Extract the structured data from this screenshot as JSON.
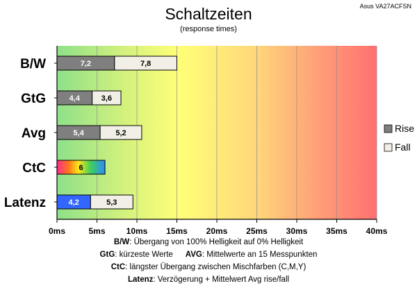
{
  "chart_data": {
    "type": "bar",
    "orientation": "horizontal",
    "stacked": true,
    "title": "Schaltzeiten",
    "subtitle": "(response times)",
    "model": "Asus VA27ACFSN",
    "categories": [
      "B/W",
      "GtG",
      "Avg",
      "CtC",
      "Latenz"
    ],
    "series": [
      {
        "name": "Rise",
        "color": "#7f7f7f",
        "values": [
          7.2,
          4.4,
          5.4,
          6,
          4.2
        ],
        "labels": [
          "7,2",
          "4,4",
          "5,4",
          "6",
          "4,2"
        ]
      },
      {
        "name": "Fall",
        "color": "#f2f0e6",
        "values": [
          7.8,
          3.6,
          5.2,
          null,
          5.3
        ],
        "labels": [
          "7,8",
          "3,6",
          "5,2",
          "",
          "5,3"
        ]
      }
    ],
    "special_colors": {
      "CtC": "rainbow-gradient",
      "Latenz": "#3366ff"
    },
    "xlim": [
      0,
      40
    ],
    "xticks": [
      0,
      5,
      10,
      15,
      20,
      25,
      30,
      35,
      40
    ],
    "xtick_labels": [
      "0ms",
      "5ms",
      "10ms",
      "15ms",
      "20ms",
      "25ms",
      "30ms",
      "35ms",
      "40ms"
    ],
    "grid": true,
    "background": "green-yellow-red gradient",
    "legend_placement": "right"
  },
  "notes": [
    {
      "key": "B/W",
      "text": ":  Übergang von 100% Helligkeit auf 0% Helligkeit"
    },
    {
      "key": "GtG",
      "text": ": kürzeste  Werte",
      "key2": "AVG",
      "text2": ": Mittelwerte  an 15 Messpunkten"
    },
    {
      "key": "CtC",
      "text": ": längster Übergang  zwischen Mischfarben (C,M,Y)"
    },
    {
      "key": "Latenz",
      "text": ": Verzögerung  + Mittelwert Avg rise/fall"
    }
  ]
}
